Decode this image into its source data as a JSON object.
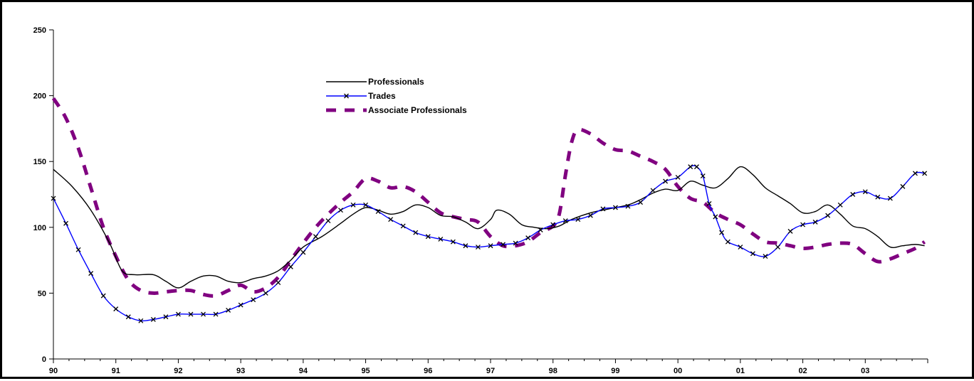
{
  "chart_data": {
    "type": "line",
    "title": "",
    "xlabel": "",
    "ylabel": "",
    "ylim": [
      0,
      250
    ],
    "yticks": [
      0,
      50,
      100,
      150,
      200,
      250
    ],
    "xlim": [
      1990,
      2004
    ],
    "xticks": [
      {
        "value": 1990,
        "label": "90"
      },
      {
        "value": 1991,
        "label": "91"
      },
      {
        "value": 1992,
        "label": "92"
      },
      {
        "value": 1993,
        "label": "93"
      },
      {
        "value": 1994,
        "label": "94"
      },
      {
        "value": 1995,
        "label": "95"
      },
      {
        "value": 1996,
        "label": "96"
      },
      {
        "value": 1997,
        "label": "97"
      },
      {
        "value": 1998,
        "label": "98"
      },
      {
        "value": 1999,
        "label": "99"
      },
      {
        "value": 2000,
        "label": "00"
      },
      {
        "value": 2001,
        "label": "01"
      },
      {
        "value": 2002,
        "label": "02"
      },
      {
        "value": 2003,
        "label": "03"
      }
    ],
    "grid": false,
    "legend_position": "top-center",
    "series": [
      {
        "name": "Professionals",
        "color": "#000000",
        "style": "solid",
        "points": [
          [
            1990.0,
            144
          ],
          [
            1990.3,
            131
          ],
          [
            1990.6,
            113
          ],
          [
            1990.9,
            88
          ],
          [
            1991.1,
            67
          ],
          [
            1991.3,
            64
          ],
          [
            1991.6,
            64
          ],
          [
            1991.8,
            59
          ],
          [
            1992.0,
            54
          ],
          [
            1992.2,
            59
          ],
          [
            1992.4,
            63
          ],
          [
            1992.6,
            63
          ],
          [
            1992.8,
            59
          ],
          [
            1993.0,
            58
          ],
          [
            1993.2,
            61
          ],
          [
            1993.4,
            63
          ],
          [
            1993.6,
            67
          ],
          [
            1993.8,
            75
          ],
          [
            1994.0,
            85
          ],
          [
            1994.3,
            93
          ],
          [
            1994.6,
            103
          ],
          [
            1994.8,
            110
          ],
          [
            1995.0,
            115
          ],
          [
            1995.2,
            113
          ],
          [
            1995.4,
            110
          ],
          [
            1995.6,
            112
          ],
          [
            1995.8,
            117
          ],
          [
            1996.0,
            115
          ],
          [
            1996.2,
            109
          ],
          [
            1996.4,
            108
          ],
          [
            1996.6,
            104
          ],
          [
            1996.8,
            99
          ],
          [
            1997.0,
            106
          ],
          [
            1997.1,
            113
          ],
          [
            1997.3,
            110
          ],
          [
            1997.5,
            102
          ],
          [
            1997.7,
            100
          ],
          [
            1997.9,
            99
          ],
          [
            1998.1,
            101
          ],
          [
            1998.3,
            106
          ],
          [
            1998.6,
            111
          ],
          [
            1998.9,
            114
          ],
          [
            1999.2,
            117
          ],
          [
            1999.4,
            121
          ],
          [
            1999.6,
            126
          ],
          [
            1999.8,
            129
          ],
          [
            2000.0,
            128
          ],
          [
            2000.2,
            135
          ],
          [
            2000.4,
            132
          ],
          [
            2000.6,
            130
          ],
          [
            2000.8,
            137
          ],
          [
            2001.0,
            146
          ],
          [
            2001.2,
            140
          ],
          [
            2001.4,
            130
          ],
          [
            2001.6,
            124
          ],
          [
            2001.8,
            118
          ],
          [
            2002.0,
            111
          ],
          [
            2002.2,
            112
          ],
          [
            2002.4,
            117
          ],
          [
            2002.6,
            110
          ],
          [
            2002.8,
            101
          ],
          [
            2003.0,
            99
          ],
          [
            2003.2,
            93
          ],
          [
            2003.4,
            85
          ],
          [
            2003.6,
            86
          ],
          [
            2003.8,
            87
          ],
          [
            2003.95,
            86
          ]
        ]
      },
      {
        "name": "Trades",
        "color": "#0000ff",
        "marker_color": "#000000",
        "style": "solid-x-markers",
        "points": [
          [
            1990.0,
            122
          ],
          [
            1990.2,
            103
          ],
          [
            1990.4,
            83
          ],
          [
            1990.6,
            65
          ],
          [
            1990.8,
            48
          ],
          [
            1991.0,
            38
          ],
          [
            1991.2,
            32
          ],
          [
            1991.4,
            29
          ],
          [
            1991.6,
            30
          ],
          [
            1991.8,
            32
          ],
          [
            1992.0,
            34
          ],
          [
            1992.2,
            34
          ],
          [
            1992.4,
            34
          ],
          [
            1992.6,
            34
          ],
          [
            1992.8,
            37
          ],
          [
            1993.0,
            41
          ],
          [
            1993.2,
            45
          ],
          [
            1993.4,
            50
          ],
          [
            1993.6,
            58
          ],
          [
            1993.8,
            70
          ],
          [
            1994.0,
            81
          ],
          [
            1994.2,
            93
          ],
          [
            1994.4,
            105
          ],
          [
            1994.6,
            113
          ],
          [
            1994.8,
            117
          ],
          [
            1995.0,
            117
          ],
          [
            1995.2,
            112
          ],
          [
            1995.4,
            106
          ],
          [
            1995.6,
            101
          ],
          [
            1995.8,
            96
          ],
          [
            1996.0,
            93
          ],
          [
            1996.2,
            91
          ],
          [
            1996.4,
            89
          ],
          [
            1996.6,
            86
          ],
          [
            1996.8,
            85
          ],
          [
            1997.0,
            86
          ],
          [
            1997.2,
            87
          ],
          [
            1997.4,
            88
          ],
          [
            1997.6,
            92
          ],
          [
            1997.8,
            98
          ],
          [
            1998.0,
            102
          ],
          [
            1998.2,
            105
          ],
          [
            1998.4,
            106
          ],
          [
            1998.6,
            109
          ],
          [
            1998.8,
            114
          ],
          [
            1999.0,
            115
          ],
          [
            1999.2,
            116
          ],
          [
            1999.4,
            119
          ],
          [
            1999.6,
            128
          ],
          [
            1999.8,
            135
          ],
          [
            2000.0,
            138
          ],
          [
            2000.2,
            146
          ],
          [
            2000.3,
            146
          ],
          [
            2000.4,
            139
          ],
          [
            2000.5,
            118
          ],
          [
            2000.6,
            108
          ],
          [
            2000.7,
            96
          ],
          [
            2000.8,
            89
          ],
          [
            2001.0,
            85
          ],
          [
            2001.2,
            80
          ],
          [
            2001.4,
            78
          ],
          [
            2001.6,
            85
          ],
          [
            2001.8,
            97
          ],
          [
            2002.0,
            102
          ],
          [
            2002.2,
            104
          ],
          [
            2002.4,
            109
          ],
          [
            2002.6,
            117
          ],
          [
            2002.8,
            125
          ],
          [
            2003.0,
            127
          ],
          [
            2003.2,
            123
          ],
          [
            2003.4,
            122
          ],
          [
            2003.6,
            131
          ],
          [
            2003.8,
            141
          ],
          [
            2003.95,
            141
          ]
        ]
      },
      {
        "name": "Associate Professionals",
        "color": "#800080",
        "style": "dashed",
        "points": [
          [
            1990.0,
            198
          ],
          [
            1990.2,
            183
          ],
          [
            1990.4,
            160
          ],
          [
            1990.6,
            130
          ],
          [
            1990.8,
            100
          ],
          [
            1991.0,
            78
          ],
          [
            1991.2,
            60
          ],
          [
            1991.4,
            52
          ],
          [
            1991.6,
            50
          ],
          [
            1991.8,
            51
          ],
          [
            1992.0,
            52
          ],
          [
            1992.2,
            52
          ],
          [
            1992.4,
            49
          ],
          [
            1992.6,
            48
          ],
          [
            1992.8,
            52
          ],
          [
            1993.0,
            56
          ],
          [
            1993.2,
            51
          ],
          [
            1993.4,
            54
          ],
          [
            1993.6,
            62
          ],
          [
            1993.8,
            75
          ],
          [
            1994.0,
            88
          ],
          [
            1994.2,
            100
          ],
          [
            1994.4,
            110
          ],
          [
            1994.6,
            119
          ],
          [
            1994.8,
            127
          ],
          [
            1995.0,
            137
          ],
          [
            1995.2,
            135
          ],
          [
            1995.4,
            130
          ],
          [
            1995.6,
            131
          ],
          [
            1995.8,
            127
          ],
          [
            1996.0,
            119
          ],
          [
            1996.2,
            111
          ],
          [
            1996.4,
            108
          ],
          [
            1996.6,
            106
          ],
          [
            1996.8,
            104
          ],
          [
            1997.0,
            93
          ],
          [
            1997.2,
            86
          ],
          [
            1997.4,
            86
          ],
          [
            1997.6,
            89
          ],
          [
            1997.8,
            96
          ],
          [
            1998.0,
            101
          ],
          [
            1998.1,
            110
          ],
          [
            1998.2,
            140
          ],
          [
            1998.3,
            165
          ],
          [
            1998.4,
            174
          ],
          [
            1998.6,
            171
          ],
          [
            1998.8,
            164
          ],
          [
            1999.0,
            159
          ],
          [
            1999.2,
            158
          ],
          [
            1999.4,
            154
          ],
          [
            1999.6,
            150
          ],
          [
            1999.8,
            144
          ],
          [
            2000.0,
            131
          ],
          [
            2000.2,
            122
          ],
          [
            2000.4,
            119
          ],
          [
            2000.6,
            111
          ],
          [
            2000.8,
            106
          ],
          [
            2001.0,
            102
          ],
          [
            2001.2,
            95
          ],
          [
            2001.4,
            89
          ],
          [
            2001.6,
            88
          ],
          [
            2001.8,
            86
          ],
          [
            2002.0,
            84
          ],
          [
            2002.2,
            85
          ],
          [
            2002.4,
            87
          ],
          [
            2002.6,
            88
          ],
          [
            2002.8,
            87
          ],
          [
            2003.0,
            80
          ],
          [
            2003.2,
            74
          ],
          [
            2003.4,
            76
          ],
          [
            2003.6,
            80
          ],
          [
            2003.8,
            84
          ],
          [
            2003.95,
            89
          ]
        ]
      }
    ]
  }
}
